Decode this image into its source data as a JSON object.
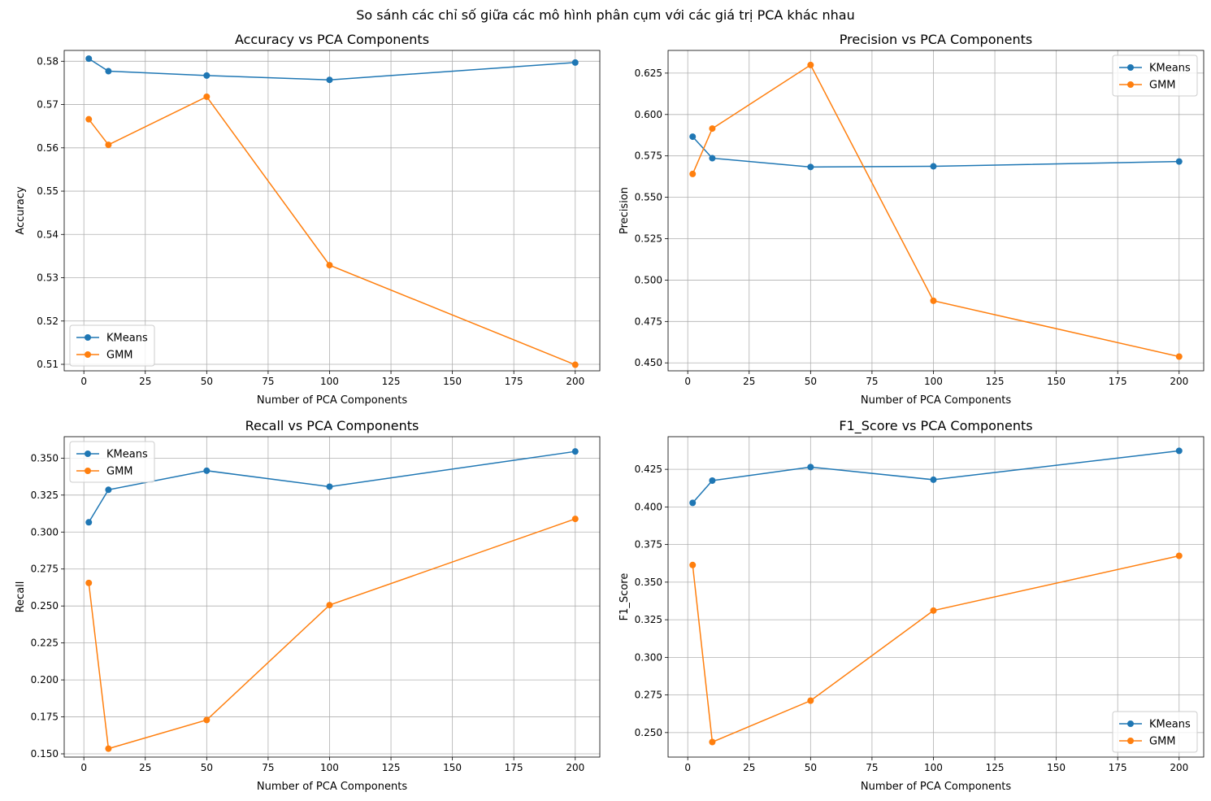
{
  "figure": {
    "suptitle": "So sánh các chỉ số giữa các mô hình phân cụm với các giá trị PCA khác nhau"
  },
  "colors": {
    "series_1": "#1f77b4",
    "series_2": "#ff7f0e",
    "grid": "#b0b0b0"
  },
  "chart_data": [
    {
      "type": "line",
      "title": "Accuracy vs PCA Components",
      "xlabel": "Number of PCA Components",
      "ylabel": "Accuracy",
      "x": [
        2,
        10,
        50,
        100,
        200
      ],
      "xlim": [
        -8,
        210
      ],
      "ylim": [
        0.5085,
        0.5825
      ],
      "xticks": [
        0,
        25,
        50,
        75,
        100,
        125,
        150,
        175,
        200
      ],
      "yticks": [
        0.51,
        0.52,
        0.53,
        0.54,
        0.55,
        0.56,
        0.57,
        0.58
      ],
      "ytick_labels": [
        "0.51",
        "0.52",
        "0.53",
        "0.54",
        "0.55",
        "0.56",
        "0.57",
        "0.58"
      ],
      "grid": true,
      "legend_position": "lower-left",
      "series": [
        {
          "name": "KMeans",
          "values": [
            0.5806,
            0.5777,
            0.5767,
            0.5757,
            0.5797
          ]
        },
        {
          "name": "GMM",
          "values": [
            0.5666,
            0.5607,
            0.5718,
            0.5329,
            0.5099
          ]
        }
      ]
    },
    {
      "type": "line",
      "title": "Precision vs PCA Components",
      "xlabel": "Number of PCA Components",
      "ylabel": "Precision",
      "x": [
        2,
        10,
        50,
        100,
        200
      ],
      "xlim": [
        -8,
        210
      ],
      "ylim": [
        0.4452,
        0.6387
      ],
      "xticks": [
        0,
        25,
        50,
        75,
        100,
        125,
        150,
        175,
        200
      ],
      "yticks": [
        0.45,
        0.475,
        0.5,
        0.525,
        0.55,
        0.575,
        0.6,
        0.625
      ],
      "ytick_labels": [
        "0.450",
        "0.475",
        "0.500",
        "0.525",
        "0.550",
        "0.575",
        "0.600",
        "0.625"
      ],
      "grid": true,
      "legend_position": "upper-right",
      "series": [
        {
          "name": "KMeans",
          "values": [
            0.5866,
            0.5736,
            0.5683,
            0.5687,
            0.5716
          ]
        },
        {
          "name": "GMM",
          "values": [
            0.5641,
            0.5915,
            0.6299,
            0.4875,
            0.4538
          ]
        }
      ]
    },
    {
      "type": "line",
      "title": "Recall vs PCA Components",
      "xlabel": "Number of PCA Components",
      "ylabel": "Recall",
      "x": [
        2,
        10,
        50,
        100,
        200
      ],
      "xlim": [
        -8,
        210
      ],
      "ylim": [
        0.1478,
        0.3645
      ],
      "xticks": [
        0,
        25,
        50,
        75,
        100,
        125,
        150,
        175,
        200
      ],
      "yticks": [
        0.15,
        0.175,
        0.2,
        0.225,
        0.25,
        0.275,
        0.3,
        0.325,
        0.35
      ],
      "ytick_labels": [
        "0.150",
        "0.175",
        "0.200",
        "0.225",
        "0.250",
        "0.275",
        "0.300",
        "0.325",
        "0.350"
      ],
      "grid": true,
      "legend_position": "upper-left",
      "series": [
        {
          "name": "KMeans",
          "values": [
            0.3066,
            0.3286,
            0.3415,
            0.3307,
            0.3545
          ]
        },
        {
          "name": "GMM",
          "values": [
            0.2656,
            0.1535,
            0.1729,
            0.2506,
            0.3089
          ]
        }
      ]
    },
    {
      "type": "line",
      "title": "F1_Score vs PCA Components",
      "xlabel": "Number of PCA Components",
      "ylabel": "F1_Score",
      "x": [
        2,
        10,
        50,
        100,
        200
      ],
      "xlim": [
        -8,
        210
      ],
      "ylim": [
        0.2337,
        0.4467
      ],
      "xticks": [
        0,
        25,
        50,
        75,
        100,
        125,
        150,
        175,
        200
      ],
      "yticks": [
        0.25,
        0.275,
        0.3,
        0.325,
        0.35,
        0.375,
        0.4,
        0.425
      ],
      "ytick_labels": [
        "0.250",
        "0.275",
        "0.300",
        "0.325",
        "0.350",
        "0.375",
        "0.400",
        "0.425"
      ],
      "grid": true,
      "legend_position": "lower-right",
      "series": [
        {
          "name": "KMeans",
          "values": [
            0.4027,
            0.4175,
            0.4265,
            0.4181,
            0.4373
          ]
        },
        {
          "name": "GMM",
          "values": [
            0.3614,
            0.2437,
            0.2712,
            0.3311,
            0.3675
          ]
        }
      ]
    }
  ]
}
